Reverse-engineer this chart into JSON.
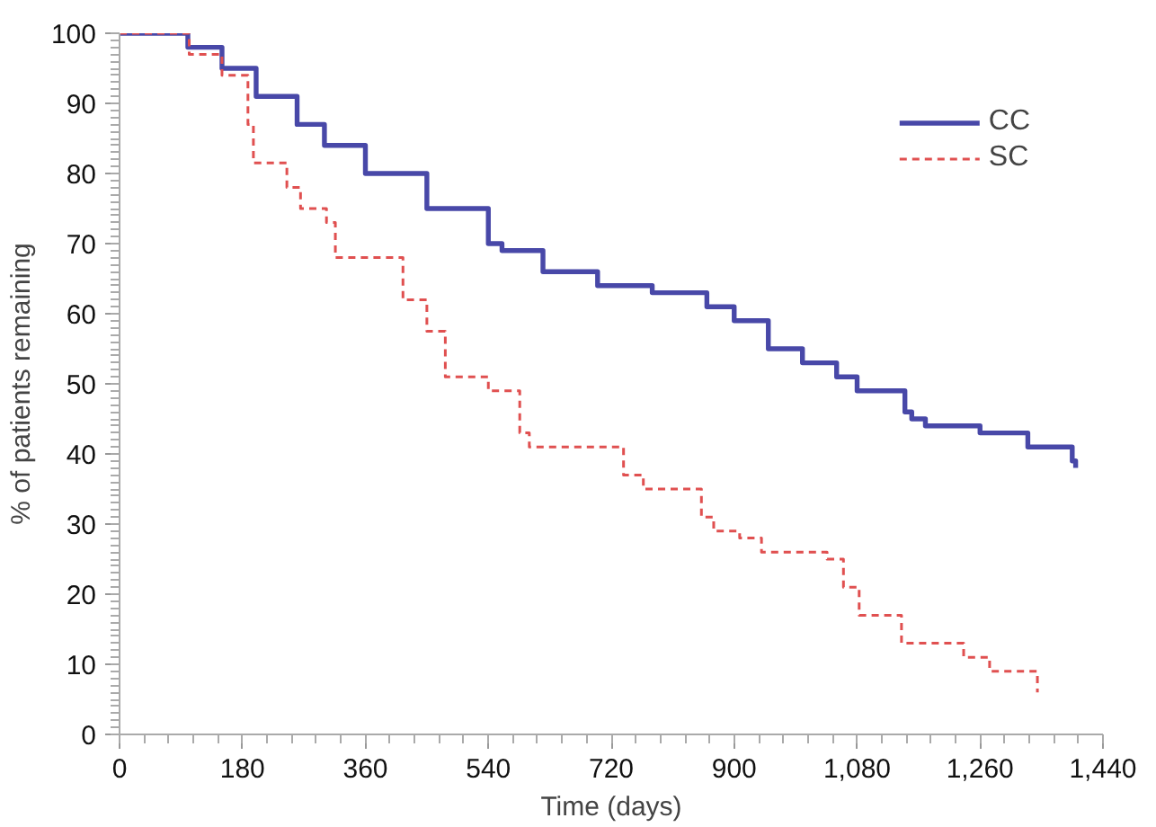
{
  "chart_data": {
    "type": "step",
    "xlabel": "Time (days)",
    "ylabel": "% of patients remaining",
    "xlim": [
      0,
      1440
    ],
    "ylim": [
      0,
      100
    ],
    "xticks": [
      0,
      180,
      360,
      540,
      720,
      900,
      {
        "value": 1080,
        "label": "1,080"
      },
      {
        "value": 1260,
        "label": "1,260"
      },
      {
        "value": 1440,
        "label": "1,440"
      }
    ],
    "yticks": [
      0,
      10,
      20,
      30,
      40,
      50,
      60,
      70,
      80,
      90,
      100
    ],
    "grid": false,
    "legend": "top right",
    "marker": "none",
    "series": [
      {
        "name": "CC",
        "color": "#4848a8",
        "line_style": "solid",
        "x": [
          0,
          60,
          100,
          150,
          200,
          260,
          300,
          360,
          450,
          540,
          560,
          620,
          700,
          780,
          860,
          900,
          950,
          1000,
          1050,
          1080,
          1150,
          1160,
          1180,
          1260,
          1330,
          1395,
          1400
        ],
        "values": [
          100,
          100,
          98,
          95,
          91,
          87,
          84,
          80,
          75,
          70,
          69,
          66,
          64,
          63,
          61,
          59,
          55,
          53,
          51,
          49,
          46,
          45,
          44,
          43,
          41,
          39,
          38
        ]
      },
      {
        "name": "SC",
        "color": "#e05050",
        "line_style": "dashed",
        "x": [
          0,
          80,
          102,
          150,
          188,
          196,
          245,
          265,
          303,
          316,
          415,
          450,
          477,
          540,
          586,
          600,
          738,
          767,
          852,
          870,
          908,
          940,
          1036,
          1060,
          1083,
          1145,
          1236,
          1274,
          1344
        ],
        "values": [
          100,
          100,
          97,
          94,
          87,
          81.5,
          78,
          75,
          73,
          68,
          62,
          57.5,
          51,
          49,
          43,
          41,
          37,
          35,
          31,
          29,
          28,
          26,
          25,
          21,
          17,
          13,
          11,
          9,
          6
        ]
      }
    ]
  }
}
